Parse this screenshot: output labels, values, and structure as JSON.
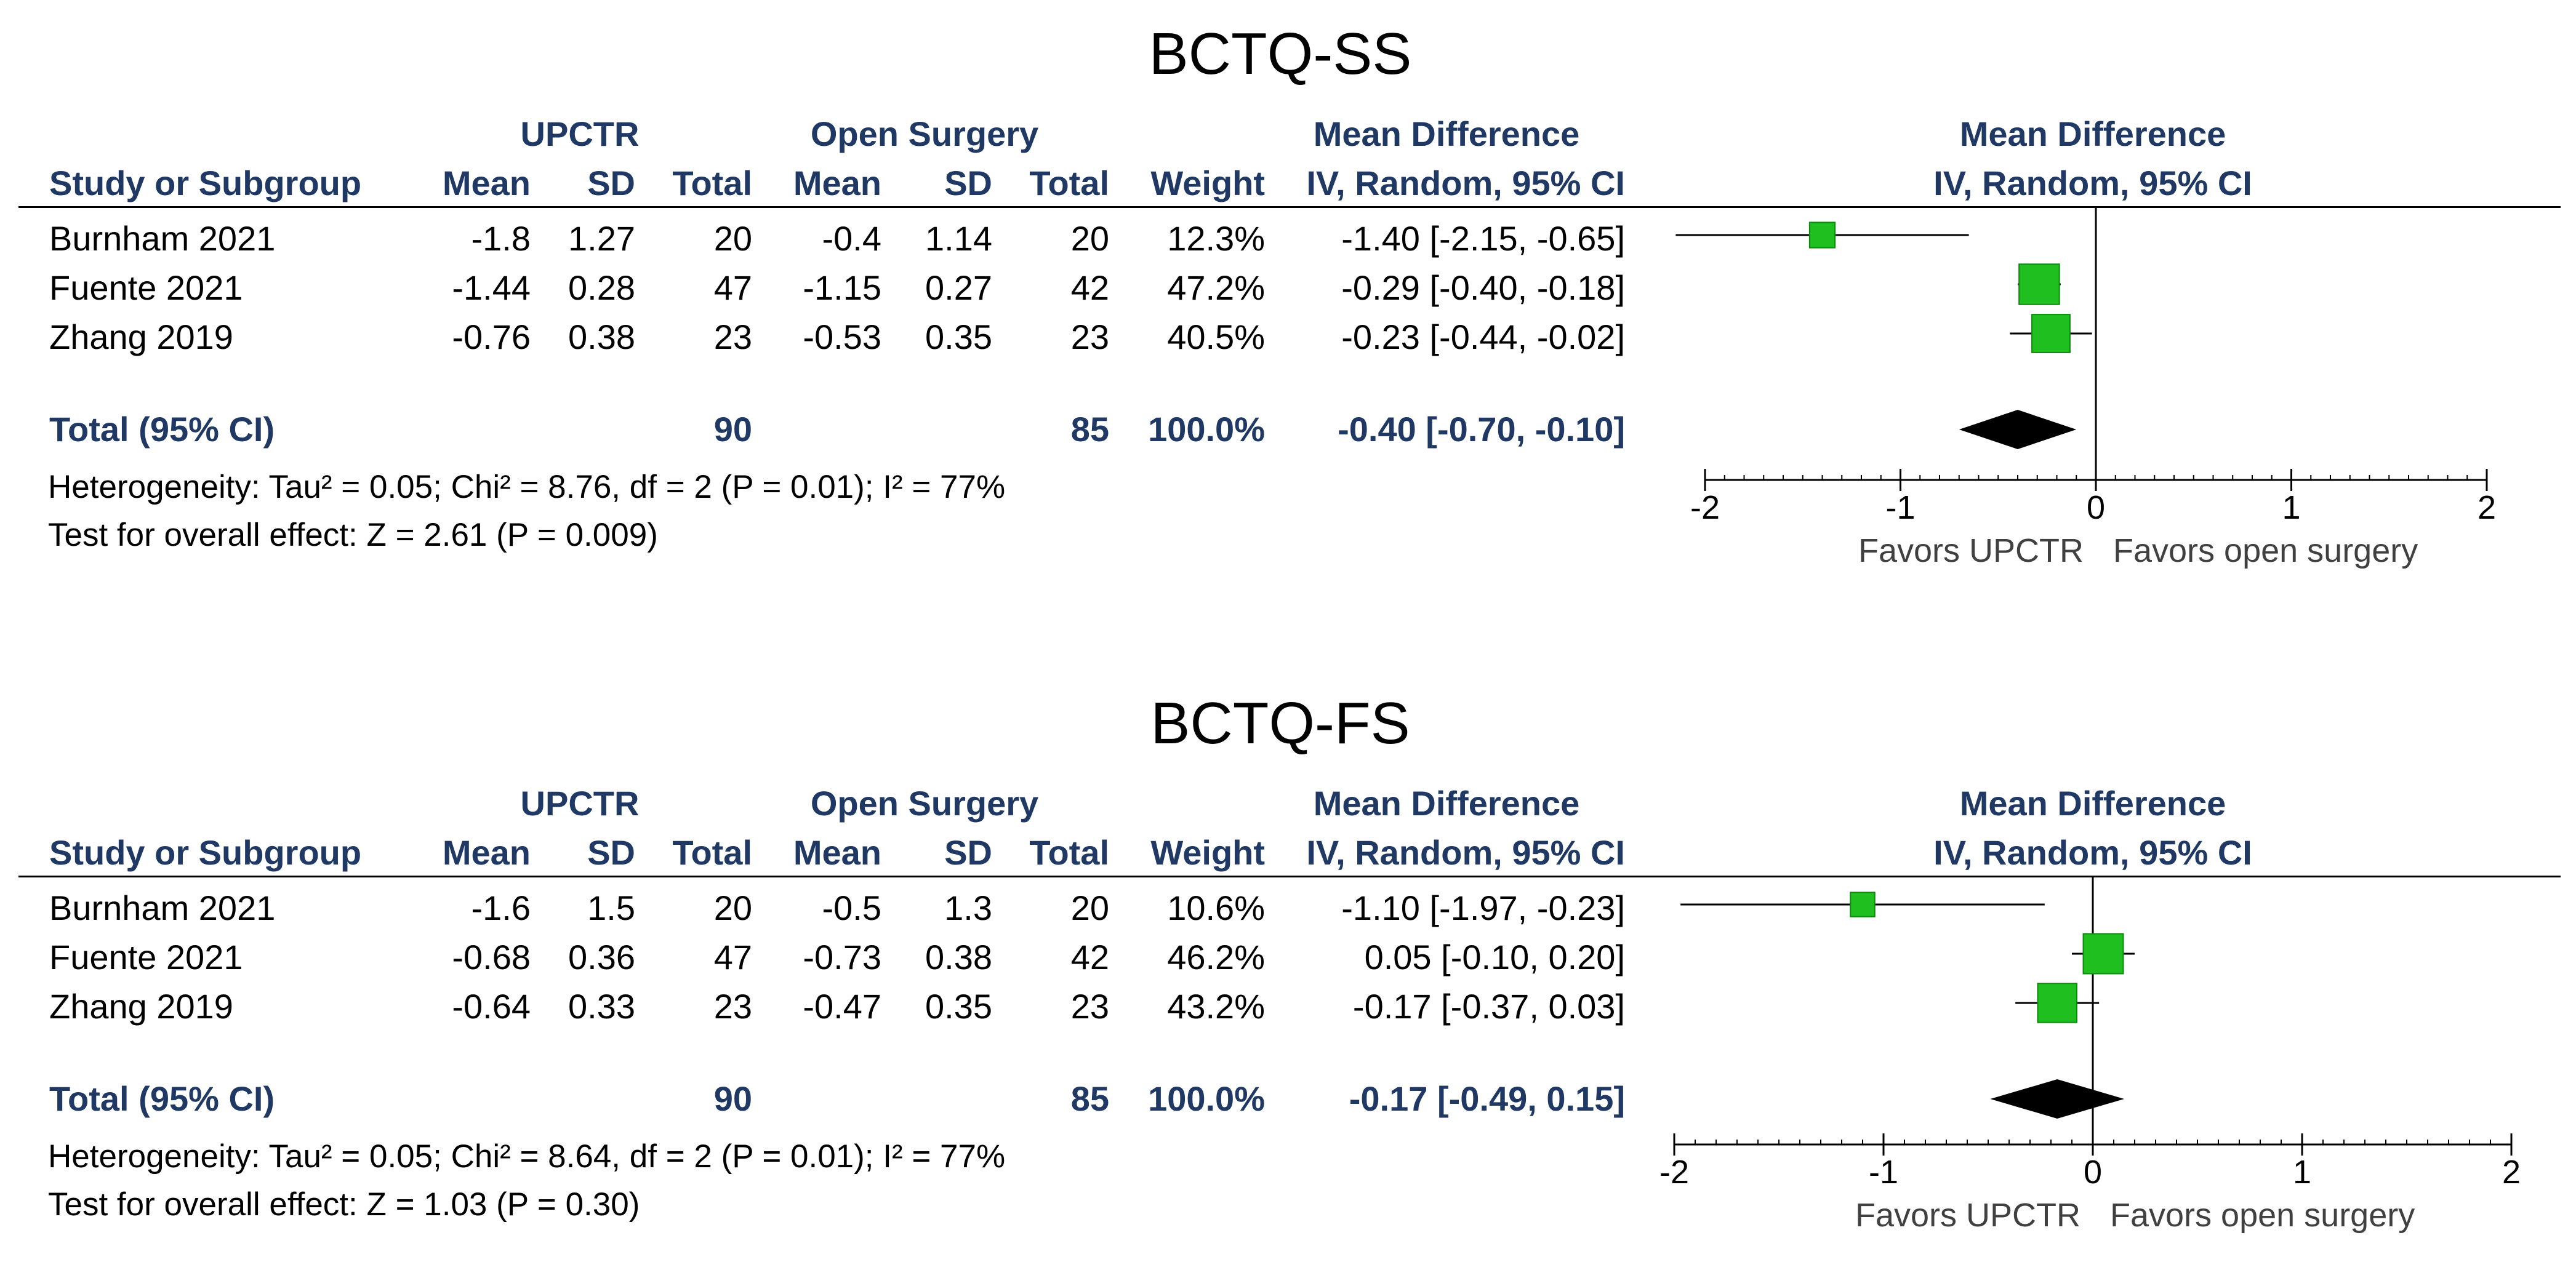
{
  "chart_data": [
    {
      "type": "forest",
      "title": "BCTQ-SS",
      "headers": {
        "group1": "UPCTR",
        "group2": "Open Surgery",
        "md_top": "Mean Difference",
        "study": "Study or Subgroup",
        "mean": "Mean",
        "sd": "SD",
        "total": "Total",
        "weight": "Weight",
        "md_method": "IV, Random, 95% CI",
        "plot_top": "Mean Difference",
        "plot_method": "IV, Random, 95% CI"
      },
      "studies": [
        {
          "name": "Burnham 2021",
          "mean1": "-1.8",
          "sd1": "1.27",
          "n1": "20",
          "mean2": "-0.4",
          "sd2": "1.14",
          "n2": "20",
          "weight": "12.3%",
          "md_text": "-1.40 [-2.15, -0.65]",
          "md": -1.4,
          "lo": -2.15,
          "hi": -0.65,
          "w": 12.3
        },
        {
          "name": "Fuente 2021",
          "mean1": "-1.44",
          "sd1": "0.28",
          "n1": "47",
          "mean2": "-1.15",
          "sd2": "0.27",
          "n2": "42",
          "weight": "47.2%",
          "md_text": "-0.29 [-0.40, -0.18]",
          "md": -0.29,
          "lo": -0.4,
          "hi": -0.18,
          "w": 47.2
        },
        {
          "name": "Zhang 2019",
          "mean1": "-0.76",
          "sd1": "0.38",
          "n1": "23",
          "mean2": "-0.53",
          "sd2": "0.35",
          "n2": "23",
          "weight": "40.5%",
          "md_text": "-0.23 [-0.44, -0.02]",
          "md": -0.23,
          "lo": -0.44,
          "hi": -0.02,
          "w": 40.5
        }
      ],
      "total": {
        "label": "Total (95% CI)",
        "n1": "90",
        "n2": "85",
        "weight": "100.0%",
        "md_text": "-0.40 [-0.70, -0.10]",
        "md": -0.4,
        "lo": -0.7,
        "hi": -0.1
      },
      "heterogeneity": "Heterogeneity: Tau² = 0.05; Chi² = 8.76, df = 2 (P = 0.01); I² = 77%",
      "overall_effect": "Test for overall effect: Z = 2.61 (P = 0.009)",
      "xlim": [
        -2,
        2
      ],
      "xticks": [
        "-2",
        "-1",
        "0",
        "1",
        "2"
      ],
      "xlabel_left": "Favors UPCTR",
      "xlabel_right": "Favors open surgery"
    },
    {
      "type": "forest",
      "title": "BCTQ-FS",
      "headers": {
        "group1": "UPCTR",
        "group2": "Open Surgery",
        "md_top": "Mean Difference",
        "study": "Study or Subgroup",
        "mean": "Mean",
        "sd": "SD",
        "total": "Total",
        "weight": "Weight",
        "md_method": "IV, Random, 95% CI",
        "plot_top": "Mean Difference",
        "plot_method": "IV, Random, 95% CI"
      },
      "studies": [
        {
          "name": "Burnham 2021",
          "mean1": "-1.6",
          "sd1": "1.5",
          "n1": "20",
          "mean2": "-0.5",
          "sd2": "1.3",
          "n2": "20",
          "weight": "10.6%",
          "md_text": "-1.10 [-1.97, -0.23]",
          "md": -1.1,
          "lo": -1.97,
          "hi": -0.23,
          "w": 10.6
        },
        {
          "name": "Fuente 2021",
          "mean1": "-0.68",
          "sd1": "0.36",
          "n1": "47",
          "mean2": "-0.73",
          "sd2": "0.38",
          "n2": "42",
          "weight": "46.2%",
          "md_text": "0.05 [-0.10, 0.20]",
          "md": 0.05,
          "lo": -0.1,
          "hi": 0.2,
          "w": 46.2
        },
        {
          "name": "Zhang 2019",
          "mean1": "-0.64",
          "sd1": "0.33",
          "n1": "23",
          "mean2": "-0.47",
          "sd2": "0.35",
          "n2": "23",
          "weight": "43.2%",
          "md_text": "-0.17 [-0.37, 0.03]",
          "md": -0.17,
          "lo": -0.37,
          "hi": 0.03,
          "w": 43.2
        }
      ],
      "total": {
        "label": "Total (95% CI)",
        "n1": "90",
        "n2": "85",
        "weight": "100.0%",
        "md_text": "-0.17 [-0.49, 0.15]",
        "md": -0.17,
        "lo": -0.49,
        "hi": 0.15
      },
      "heterogeneity": "Heterogeneity: Tau² = 0.05; Chi² = 8.64, df = 2 (P = 0.01); I² = 77%",
      "overall_effect": "Test for overall effect: Z = 1.03 (P = 0.30)",
      "xlim": [
        -2,
        2
      ],
      "xticks": [
        "-2",
        "-1",
        "0",
        "1",
        "2"
      ],
      "xlabel_left": "Favors UPCTR",
      "xlabel_right": "Favors open surgery"
    }
  ],
  "colors": {
    "marker": "#1fbf1f",
    "marker_edge": "#0d8a0d",
    "header": "#1f3864",
    "diamond": "#000000",
    "axis_label": "#404040"
  }
}
